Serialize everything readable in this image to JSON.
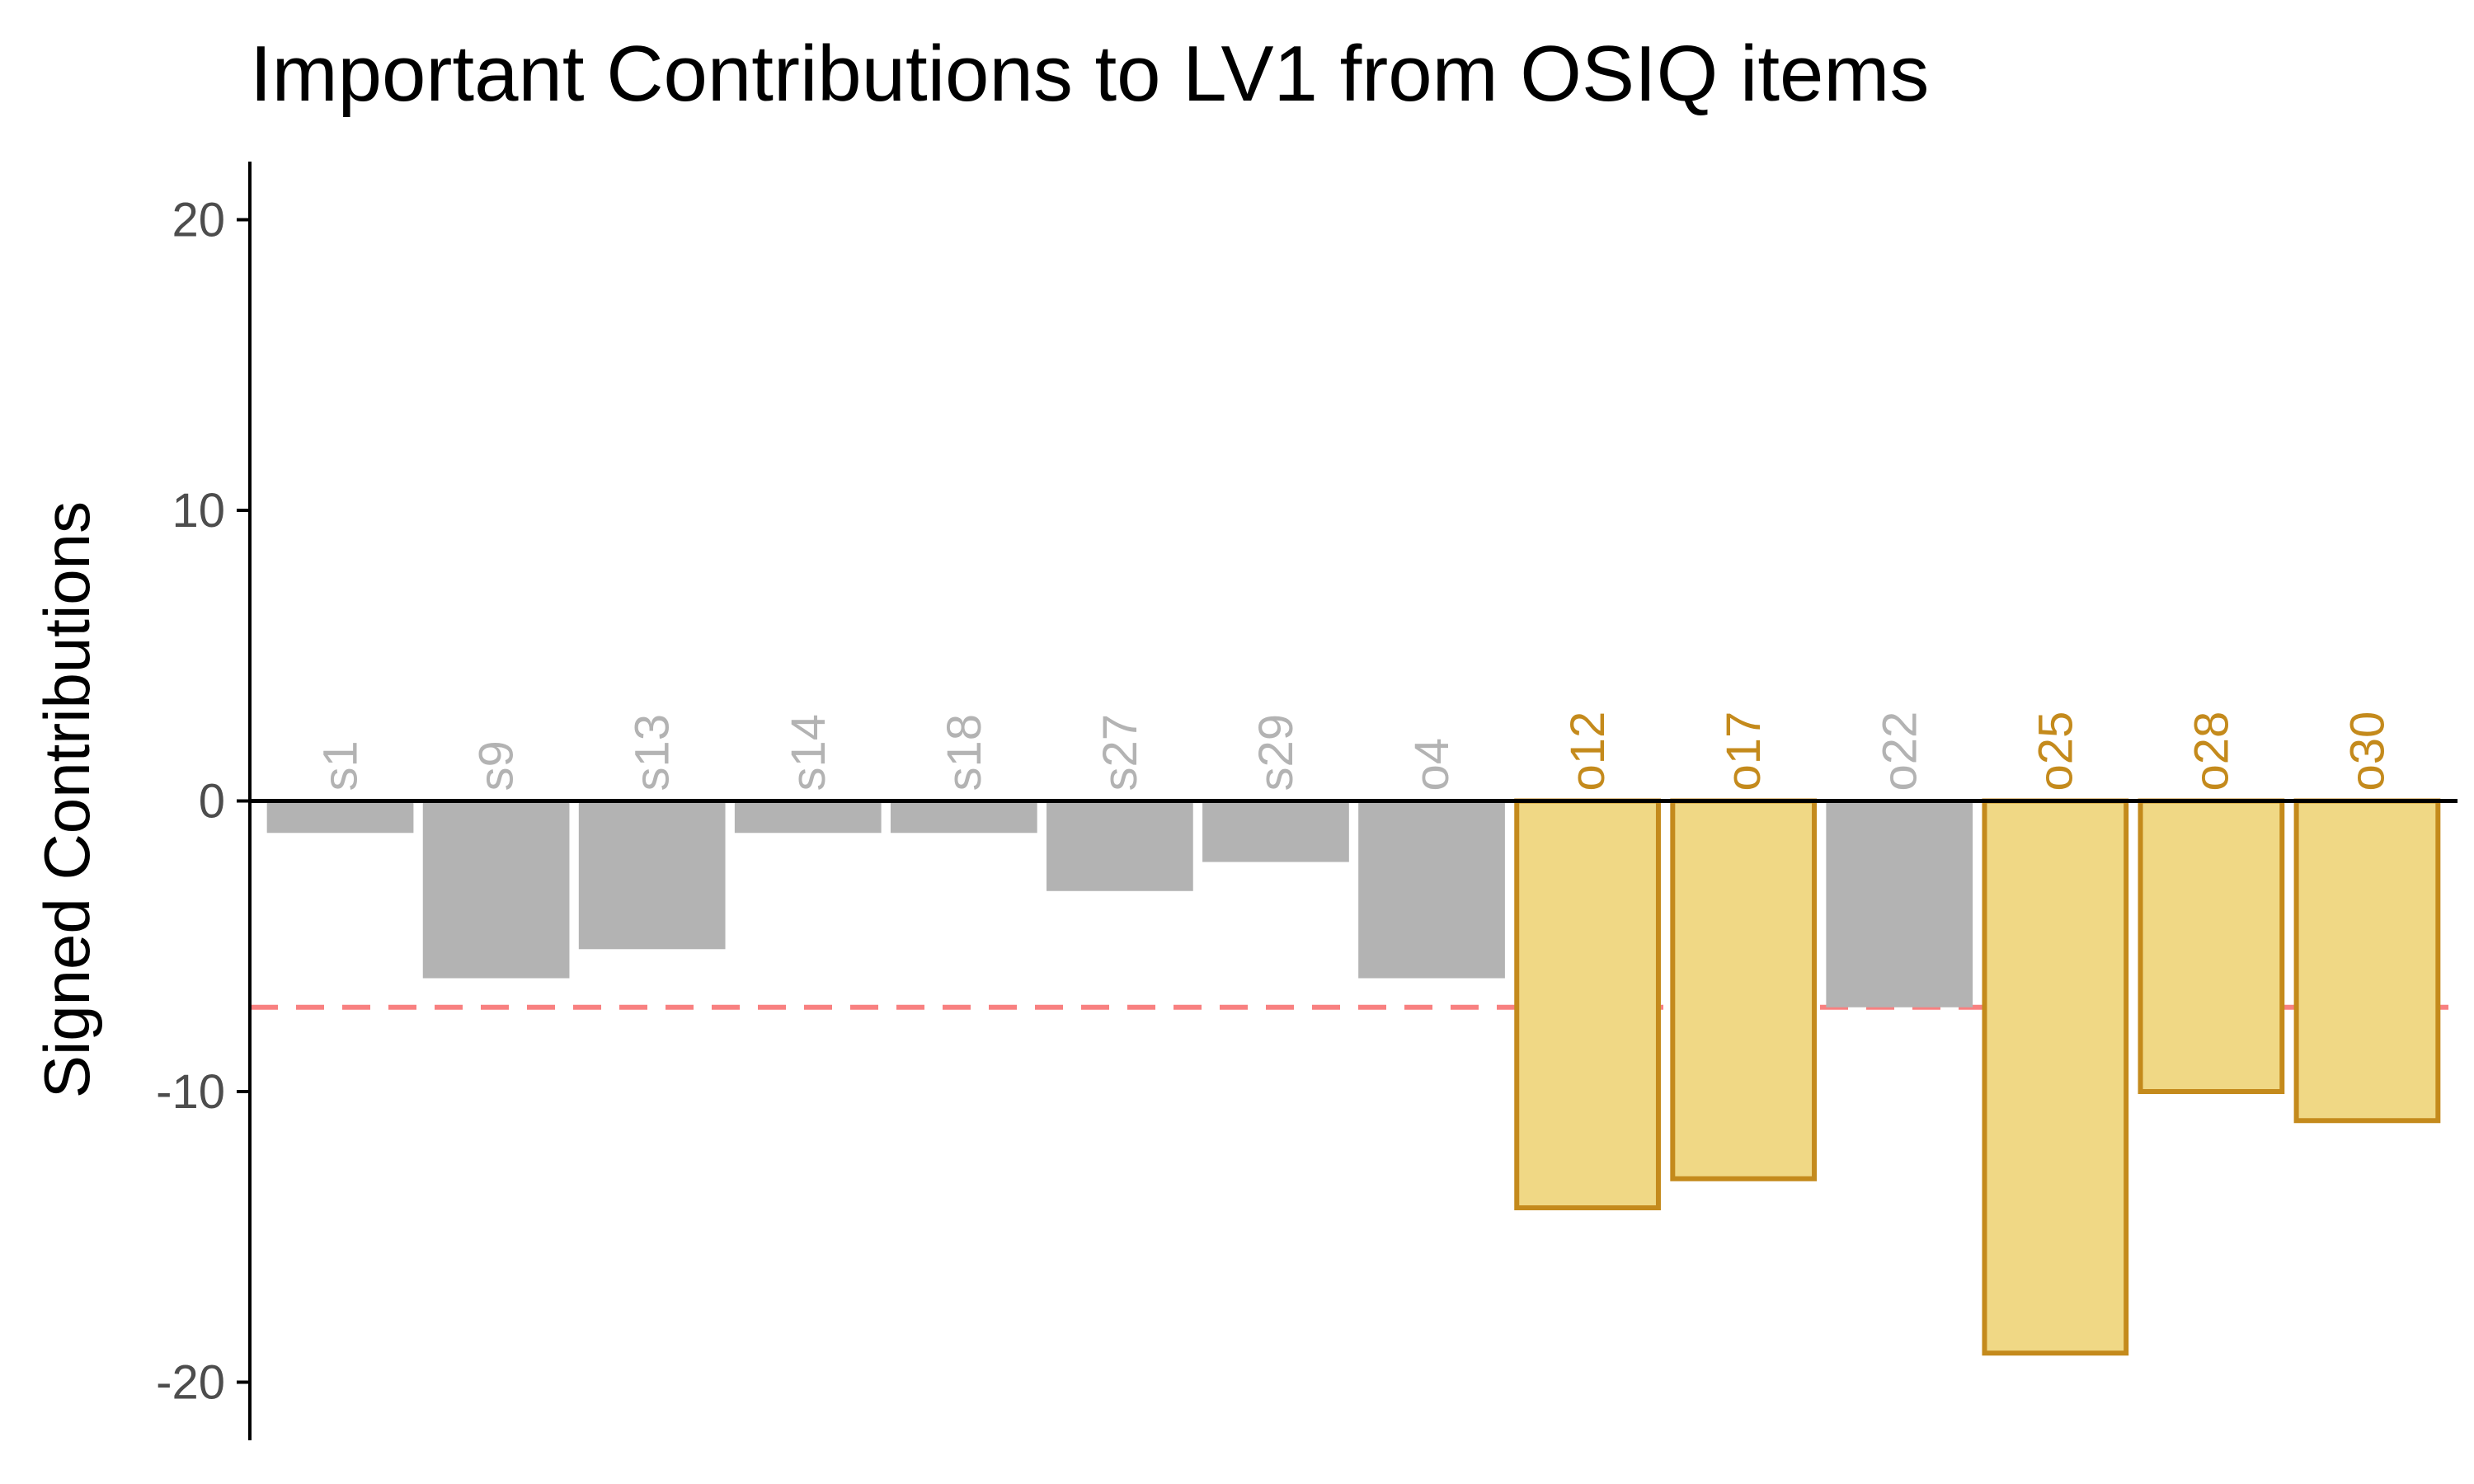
{
  "chart_data": {
    "type": "bar",
    "title": "Important Contributions to LV1 from OSIQ items",
    "xlabel": "",
    "ylabel": "Signed Contributions",
    "ylim": [
      -22,
      22
    ],
    "yticks": [
      -20,
      -10,
      0,
      10,
      20
    ],
    "threshold": -7.1,
    "grid": false,
    "legend": "none",
    "categories": [
      "s1",
      "s9",
      "s13",
      "s14",
      "s18",
      "s27",
      "s29",
      "o4",
      "o12",
      "o17",
      "o22",
      "o25",
      "o28",
      "o30"
    ],
    "values": [
      -1.1,
      -6.1,
      -5.1,
      -1.1,
      -1.1,
      -3.1,
      -2.1,
      -6.1,
      -14.0,
      -13.0,
      -7.1,
      -19.0,
      -10.0,
      -11.0
    ],
    "important": [
      false,
      false,
      false,
      false,
      false,
      false,
      false,
      false,
      true,
      true,
      false,
      true,
      true,
      true
    ],
    "colors": {
      "important_fill": "#f0d885",
      "important_stroke": "#c48a1c",
      "important_label": "#c48a1c",
      "other_fill": "#b3b3b3",
      "other_label": "#b3b3b3",
      "threshold_line": "#f88080",
      "axis": "#000000"
    }
  }
}
